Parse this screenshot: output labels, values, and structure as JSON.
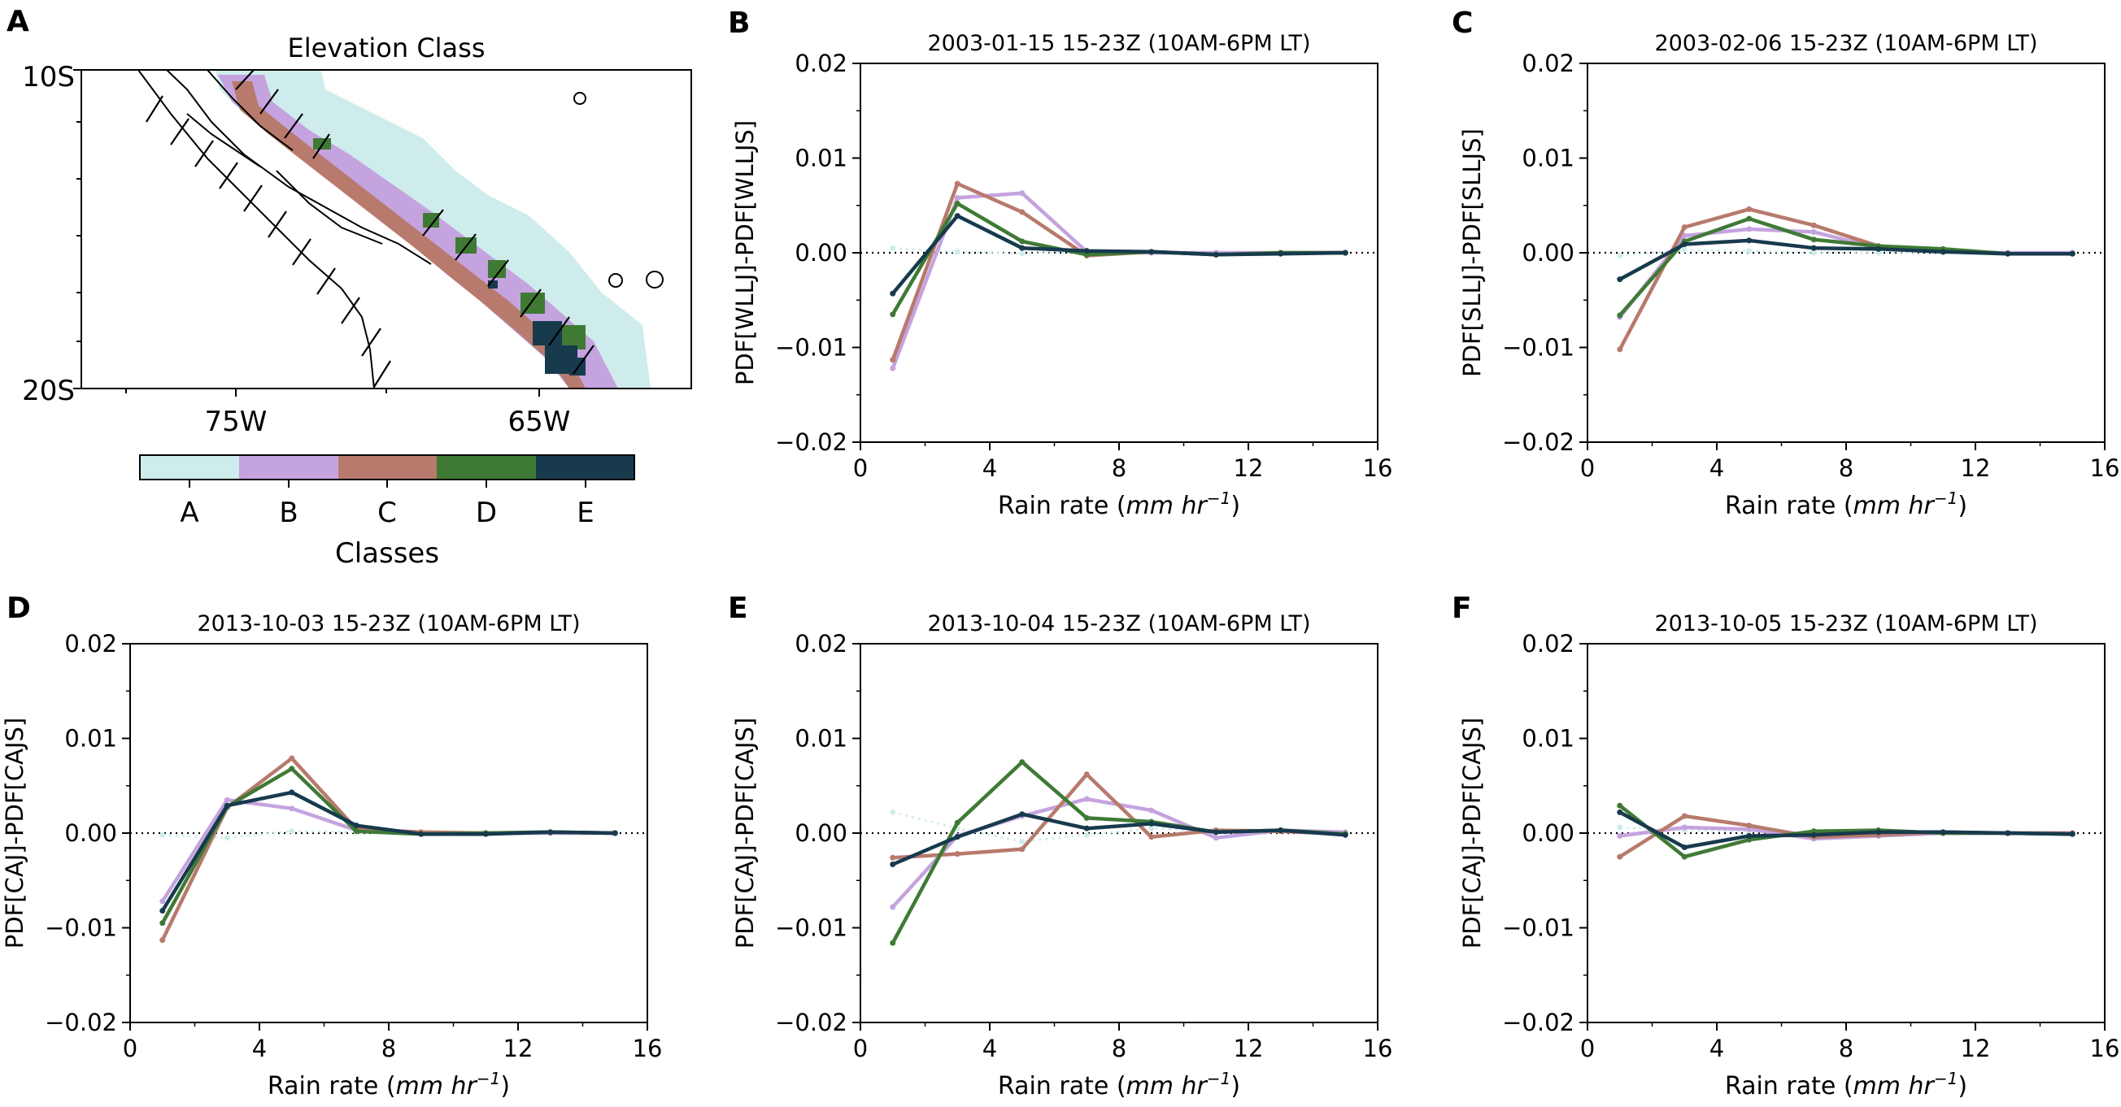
{
  "colors": {
    "A": "#cfecec",
    "B": "#c4a3df",
    "C": "#b77a6c",
    "D": "#3f7a35",
    "E": "#173a4d",
    "zero_line": "#000000"
  },
  "map_panel": {
    "panel_letter": "A",
    "title": "Elevation Class",
    "y_ticks": [
      "10S",
      "20S"
    ],
    "x_ticks": [
      "75W",
      "65W"
    ],
    "colorbar": {
      "labels": [
        "A",
        "B",
        "C",
        "D",
        "E"
      ],
      "title": "Classes"
    }
  },
  "chart_data": [
    {
      "type": "line",
      "panel_letter": "B",
      "title": "2003-01-15 15-23Z (10AM-6PM LT)",
      "xlabel_main": "Rain rate (",
      "xlabel_units": "mm hr",
      "xlabel_exp": "−1",
      "xlabel_close": ")",
      "ylabel": "PDF[WLLJ]-PDF[WLLJS]",
      "xlim": [
        0,
        16
      ],
      "ylim": [
        -0.02,
        0.02
      ],
      "x_ticks": [
        "0",
        "4",
        "8",
        "12",
        "16"
      ],
      "y_ticks": [
        "0.02",
        "0.01",
        "0.00",
        "−0.01",
        "−0.02"
      ],
      "x": [
        1,
        3,
        5,
        7,
        9,
        11,
        13,
        15
      ],
      "series": [
        {
          "name": "A",
          "values": [
            0.0005,
            0.0001,
            -0.0001,
            0.0,
            0.0,
            0.0,
            0.0,
            0.0
          ]
        },
        {
          "name": "B",
          "values": [
            -0.0122,
            0.0058,
            0.0063,
            0.0001,
            0.0,
            0.0,
            0.0,
            0.0
          ]
        },
        {
          "name": "C",
          "values": [
            -0.0113,
            0.0073,
            0.0043,
            -0.0003,
            0.0001,
            -0.0002,
            0.0,
            0.0
          ]
        },
        {
          "name": "D",
          "values": [
            -0.0065,
            0.0052,
            0.0012,
            -0.0002,
            0.0001,
            -0.0002,
            0.0,
            0.0
          ]
        },
        {
          "name": "E",
          "values": [
            -0.0043,
            0.0039,
            0.0005,
            0.0002,
            0.0001,
            -0.0002,
            -0.0001,
            0.0
          ]
        }
      ]
    },
    {
      "type": "line",
      "panel_letter": "C",
      "title": "2003-02-06 15-23Z (10AM-6PM LT)",
      "xlabel_main": "Rain rate (",
      "xlabel_units": "mm hr",
      "xlabel_exp": "−1",
      "xlabel_close": ")",
      "ylabel": "PDF[SLLJ]-PDF[SLLJS]",
      "xlim": [
        0,
        16
      ],
      "ylim": [
        -0.02,
        0.02
      ],
      "x_ticks": [
        "0",
        "4",
        "8",
        "12",
        "16"
      ],
      "y_ticks": [
        "0.02",
        "0.01",
        "0.00",
        "−0.01",
        "−0.02"
      ],
      "x": [
        1,
        3,
        5,
        7,
        9,
        11,
        13,
        15
      ],
      "series": [
        {
          "name": "A",
          "values": [
            -0.0003,
            0.0003,
            0.0002,
            0.0,
            0.0,
            0.0,
            0.0,
            0.0
          ]
        },
        {
          "name": "B",
          "values": [
            -0.0068,
            0.0018,
            0.0025,
            0.0022,
            0.0005,
            0.0001,
            0.0,
            0.0
          ]
        },
        {
          "name": "C",
          "values": [
            -0.0102,
            0.0027,
            0.0046,
            0.0029,
            0.0007,
            0.0002,
            -0.0001,
            -0.0001
          ]
        },
        {
          "name": "D",
          "values": [
            -0.0066,
            0.0012,
            0.0036,
            0.0014,
            0.0007,
            0.0004,
            -0.0001,
            -0.0001
          ]
        },
        {
          "name": "E",
          "values": [
            -0.0028,
            0.0009,
            0.0013,
            0.0005,
            0.0004,
            0.0001,
            -0.0001,
            -0.0001
          ]
        }
      ]
    },
    {
      "type": "line",
      "panel_letter": "D",
      "title": "2013-10-03 15-23Z (10AM-6PM LT)",
      "xlabel_main": "Rain rate (",
      "xlabel_units": "mm hr",
      "xlabel_exp": "−1",
      "xlabel_close": ")",
      "ylabel": "PDF[CAJ]-PDF[CAJS]",
      "xlim": [
        0,
        16
      ],
      "ylim": [
        -0.02,
        0.02
      ],
      "x_ticks": [
        "0",
        "4",
        "8",
        "12",
        "16"
      ],
      "y_ticks": [
        "0.02",
        "0.01",
        "0.00",
        "−0.01",
        "−0.02"
      ],
      "x": [
        1,
        3,
        5,
        7,
        9,
        11,
        13,
        15
      ],
      "series": [
        {
          "name": "A",
          "values": [
            -0.0002,
            -0.0005,
            0.0002,
            0.0001,
            0.0,
            0.0,
            0.0,
            0.0
          ]
        },
        {
          "name": "B",
          "values": [
            -0.0072,
            0.0035,
            0.0026,
            0.0003,
            0.0,
            0.0,
            0.0,
            0.0
          ]
        },
        {
          "name": "C",
          "values": [
            -0.0113,
            0.0027,
            0.0079,
            0.0004,
            0.0001,
            0.0,
            0.0001,
            0.0
          ]
        },
        {
          "name": "D",
          "values": [
            -0.0095,
            0.0028,
            0.0068,
            0.0002,
            -0.0001,
            0.0,
            0.0001,
            0.0
          ]
        },
        {
          "name": "E",
          "values": [
            -0.0082,
            0.0029,
            0.0043,
            0.0008,
            -0.0001,
            -0.0001,
            0.0001,
            0.0
          ]
        }
      ]
    },
    {
      "type": "line",
      "panel_letter": "E",
      "title": "2013-10-04 15-23Z (10AM-6PM LT)",
      "xlabel_main": "Rain rate (",
      "xlabel_units": "mm hr",
      "xlabel_exp": "−1",
      "xlabel_close": ")",
      "ylabel": "PDF[CAJ]-PDF[CAJS]",
      "xlim": [
        0,
        16
      ],
      "ylim": [
        -0.02,
        0.02
      ],
      "x_ticks": [
        "0",
        "4",
        "8",
        "12",
        "16"
      ],
      "y_ticks": [
        "0.02",
        "0.01",
        "0.00",
        "−0.01",
        "−0.02"
      ],
      "x": [
        1,
        3,
        5,
        7,
        9,
        11,
        13,
        15
      ],
      "series": [
        {
          "name": "A",
          "values": [
            0.0022,
            0.0005,
            -0.0009,
            -0.0002,
            0.0005,
            0.0002,
            0.0002,
            0.0
          ]
        },
        {
          "name": "B",
          "values": [
            -0.0078,
            -0.0003,
            0.0018,
            0.0036,
            0.0024,
            -0.0005,
            0.0003,
            0.0001
          ]
        },
        {
          "name": "C",
          "values": [
            -0.0026,
            -0.0022,
            -0.0017,
            0.0062,
            -0.0004,
            0.0003,
            0.0002,
            -0.0001
          ]
        },
        {
          "name": "D",
          "values": [
            -0.0116,
            0.0011,
            0.0075,
            0.0016,
            0.0012,
            0.0001,
            0.0003,
            -0.0001
          ]
        },
        {
          "name": "E",
          "values": [
            -0.0033,
            -0.0004,
            0.002,
            0.0005,
            0.001,
            0.0001,
            0.0003,
            -0.0002
          ]
        }
      ]
    },
    {
      "type": "line",
      "panel_letter": "F",
      "title": "2013-10-05 15-23Z (10AM-6PM LT)",
      "xlabel_main": "Rain rate (",
      "xlabel_units": "mm hr",
      "xlabel_exp": "−1",
      "xlabel_close": ")",
      "ylabel": "PDF[CAJ]-PDF[CAJS]",
      "xlim": [
        0,
        16
      ],
      "ylim": [
        -0.02,
        0.02
      ],
      "x_ticks": [
        "0",
        "4",
        "8",
        "12",
        "16"
      ],
      "y_ticks": [
        "0.02",
        "0.01",
        "0.00",
        "−0.01",
        "−0.02"
      ],
      "x": [
        1,
        3,
        5,
        7,
        9,
        11,
        13,
        15
      ],
      "series": [
        {
          "name": "A",
          "values": [
            0.0006,
            0.0003,
            0.0002,
            0.0,
            0.0,
            0.0,
            0.0,
            0.0
          ]
        },
        {
          "name": "B",
          "values": [
            -0.0003,
            0.0006,
            0.0004,
            -0.0006,
            -0.0003,
            0.0,
            0.0,
            0.0
          ]
        },
        {
          "name": "C",
          "values": [
            -0.0025,
            0.0018,
            0.0008,
            -0.0004,
            -0.0002,
            0.0001,
            0.0,
            0.0
          ]
        },
        {
          "name": "D",
          "values": [
            0.0029,
            -0.0025,
            -0.0007,
            0.0002,
            0.0003,
            0.0,
            0.0,
            -0.0001
          ]
        },
        {
          "name": "E",
          "values": [
            0.0022,
            -0.0015,
            -0.0003,
            -0.0002,
            0.0001,
            0.0001,
            0.0,
            -0.0001
          ]
        }
      ]
    }
  ]
}
